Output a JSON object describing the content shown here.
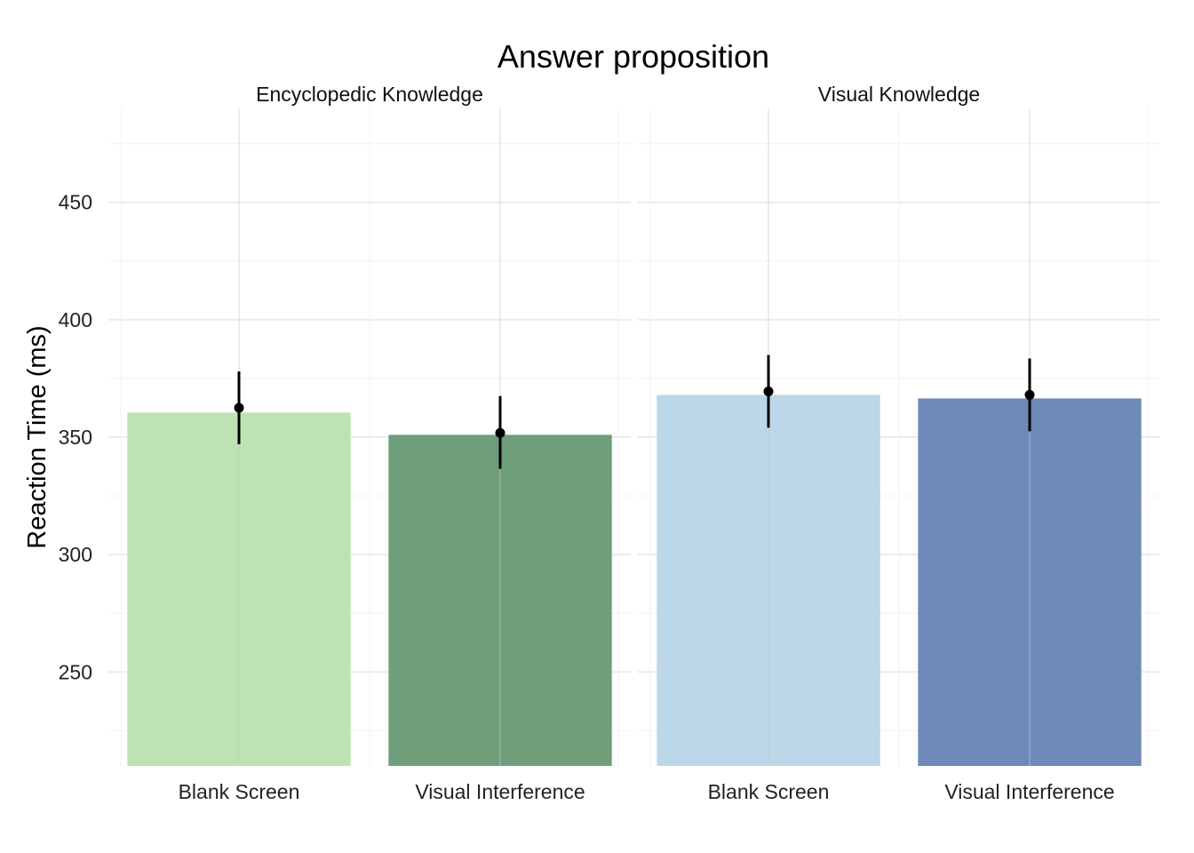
{
  "chart_data": {
    "type": "bar",
    "title": "Answer proposition",
    "xlabel": "",
    "ylabel": "Reaction Time (ms)",
    "ylim": [
      210,
      490
    ],
    "yticks": [
      250,
      300,
      350,
      400,
      450
    ],
    "grid": true,
    "legend": "none",
    "panels": [
      {
        "name": "Encyclopedic Knowledge",
        "categories": [
          "Blank Screen",
          "Visual Interference"
        ],
        "values": [
          360.5,
          351
        ],
        "points": [
          362.5,
          351.8
        ],
        "error_low": [
          347,
          336.5
        ],
        "error_high": [
          378,
          367.5
        ],
        "colors": [
          "#bde3b4",
          "#6e9e7a"
        ]
      },
      {
        "name": "Visual Knowledge",
        "categories": [
          "Blank Screen",
          "Visual Interference"
        ],
        "values": [
          368,
          366.5
        ],
        "points": [
          369.5,
          368
        ],
        "error_low": [
          354,
          352.5
        ],
        "error_high": [
          385,
          383.5
        ],
        "colors": [
          "#bbd7e8",
          "#6f8ab8"
        ]
      }
    ]
  }
}
